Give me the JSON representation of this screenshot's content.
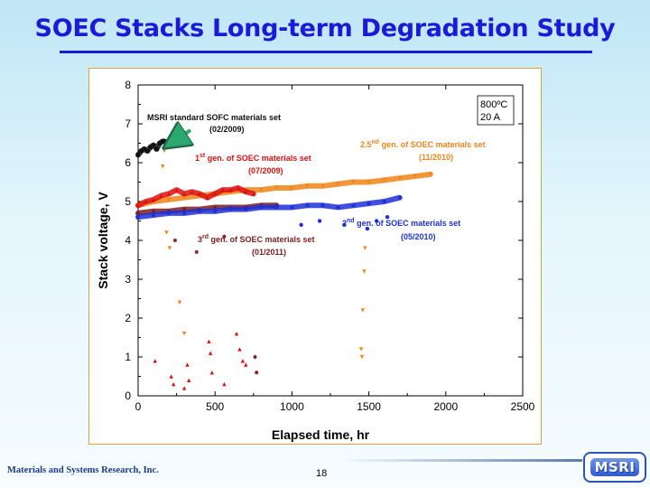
{
  "slide": {
    "title": "SOEC Stacks Long-term Degradation Study",
    "company": "Materials and Systems Research, Inc.",
    "page_number": "18",
    "logo_text": "MSRI"
  },
  "chart_data": {
    "type": "scatter",
    "xlabel": "Elapsed time, hr",
    "ylabel": "Stack voltage, V",
    "xlim": [
      0,
      2500
    ],
    "ylim": [
      0,
      8
    ],
    "xticks": [
      0,
      500,
      1000,
      1500,
      2000,
      2500
    ],
    "yticks": [
      0,
      1,
      2,
      3,
      4,
      5,
      6,
      7,
      8
    ],
    "conditions_box": [
      "800ºC",
      "20 A"
    ],
    "series": [
      {
        "name": "MSRI standard SOFC materials set (02/2009)",
        "label_line1": "MSRI standard SOFC materials set",
        "label_line2": "(02/2009)",
        "color": "#111111",
        "marker": "square",
        "x": [
          0,
          20,
          40,
          60,
          80,
          100,
          120,
          140,
          160,
          170
        ],
        "y": [
          6.2,
          6.3,
          6.35,
          6.3,
          6.4,
          6.45,
          6.35,
          6.5,
          6.55,
          6.55
        ]
      },
      {
        "name": "1st gen. of SOEC materials set (07/2009)",
        "label_prefix": "1",
        "label_sup": "st",
        "label_rest": " gen. of SOEC materials set",
        "label_line2": "(07/2009)",
        "color": "#dd1010",
        "marker": "triangle-up",
        "x": [
          0,
          50,
          100,
          150,
          200,
          250,
          300,
          350,
          400,
          450,
          500,
          550,
          600,
          650,
          700,
          750
        ],
        "y": [
          4.9,
          5.0,
          5.05,
          5.15,
          5.2,
          5.3,
          5.2,
          5.25,
          5.2,
          5.1,
          5.2,
          5.3,
          5.3,
          5.35,
          5.25,
          5.2
        ],
        "drops_x": [
          110,
          215,
          230,
          300,
          320,
          330,
          460,
          470,
          480,
          560,
          640,
          660,
          680,
          700
        ],
        "drops_y": [
          0.9,
          0.5,
          0.3,
          0.2,
          0.8,
          0.4,
          1.4,
          1.1,
          0.6,
          0.3,
          1.6,
          1.2,
          0.9,
          0.8
        ]
      },
      {
        "name": "2.5nd gen. of SOEC materials set (11/2010)",
        "label_prefix": "2.5",
        "label_sup": "nd",
        "label_rest": " gen. of SOEC materials set",
        "label_line2": "(11/2010)",
        "color": "#f08418",
        "marker": "triangle-down",
        "x": [
          0,
          100,
          200,
          300,
          400,
          500,
          600,
          700,
          800,
          900,
          1000,
          1100,
          1200,
          1300,
          1400,
          1500,
          1600,
          1700,
          1800,
          1900
        ],
        "y": [
          4.9,
          5.0,
          5.05,
          5.1,
          5.15,
          5.2,
          5.25,
          5.3,
          5.3,
          5.35,
          5.35,
          5.4,
          5.4,
          5.45,
          5.5,
          5.5,
          5.55,
          5.6,
          5.65,
          5.7
        ],
        "drops_x": [
          160,
          170,
          185,
          205,
          270,
          300,
          1450,
          1455,
          1460,
          1470,
          1475
        ],
        "drops_y": [
          5.9,
          6.3,
          4.2,
          3.8,
          2.4,
          1.6,
          1.2,
          1.0,
          2.2,
          3.2,
          3.8
        ]
      },
      {
        "name": "2nd gen. of SOEC materials set (05/2010)",
        "label_prefix": "2",
        "label_sup": "nd",
        "label_rest": " gen. of SOEC materials set",
        "label_line2": "(05/2010)",
        "color": "#1e30d8",
        "marker": "circle",
        "x": [
          0,
          100,
          200,
          300,
          400,
          500,
          600,
          700,
          800,
          900,
          1000,
          1100,
          1200,
          1300,
          1400,
          1500,
          1600,
          1700
        ],
        "y": [
          4.6,
          4.65,
          4.7,
          4.7,
          4.75,
          4.75,
          4.8,
          4.8,
          4.85,
          4.85,
          4.85,
          4.9,
          4.9,
          4.85,
          4.9,
          4.95,
          5.0,
          5.1
        ],
        "drops_x": [
          1060,
          1180,
          1340,
          1490,
          1550,
          1620
        ],
        "drops_y": [
          4.4,
          4.5,
          4.4,
          4.3,
          4.5,
          4.6
        ]
      },
      {
        "name": "3rd gen. of SOEC materials set (01/2011)",
        "label_prefix": "3",
        "label_sup": "rd",
        "label_rest": " gen. of SOEC materials set",
        "label_line2": "(01/2011)",
        "color": "#7a1e1e",
        "marker": "star",
        "x": [
          0,
          100,
          200,
          300,
          400,
          500,
          600,
          700,
          800,
          900
        ],
        "y": [
          4.7,
          4.75,
          4.75,
          4.8,
          4.8,
          4.85,
          4.85,
          4.85,
          4.9,
          4.9
        ],
        "drops_x": [
          240,
          380,
          560,
          760,
          770
        ],
        "drops_y": [
          4.0,
          3.7,
          4.1,
          1.0,
          0.6
        ]
      }
    ]
  }
}
